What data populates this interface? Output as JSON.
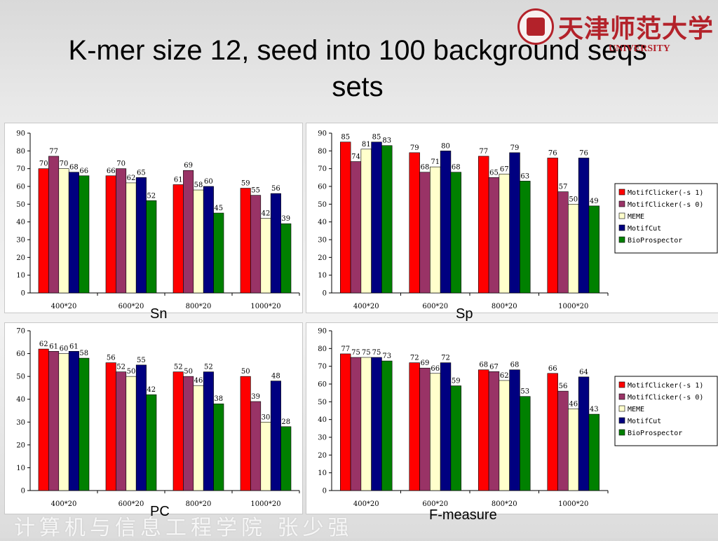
{
  "slide": {
    "title": "K-mer size 12, seed into 100 background seqs sets",
    "logo_text_cn": "天津师范大学",
    "logo_text_en": "UNIVERSITY",
    "footer_text": "计算机与信息工程学院   张少强"
  },
  "colors": {
    "MotifClicker(-s 1)": "#ff0000",
    "MotifClicker(-s 0)": "#993366",
    "MEME": "#ffffcc",
    "MotifCut": "#000080",
    "BioProspector": "#008000"
  },
  "chart_data": [
    {
      "type": "bar",
      "caption": "Sn",
      "categories": [
        "400*20",
        "600*20",
        "800*20",
        "1000*20"
      ],
      "ylim": [
        0,
        90
      ],
      "yticks": [
        0,
        10,
        20,
        30,
        40,
        50,
        60,
        70,
        80,
        90
      ],
      "legend": false,
      "series": [
        {
          "name": "MotifClicker(-s 1)",
          "values": [
            70,
            66,
            61,
            59
          ]
        },
        {
          "name": "MotifClicker(-s 0)",
          "values": [
            77,
            70,
            69,
            55
          ]
        },
        {
          "name": "MEME",
          "values": [
            70,
            62,
            58,
            42
          ]
        },
        {
          "name": "MotifCut",
          "values": [
            68,
            65,
            60,
            56
          ]
        },
        {
          "name": "BioProspector",
          "values": [
            66,
            52,
            45,
            39
          ]
        }
      ]
    },
    {
      "type": "bar",
      "caption": "Sp",
      "categories": [
        "400*20",
        "600*20",
        "800*20",
        "1000*20"
      ],
      "ylim": [
        0,
        90
      ],
      "yticks": [
        0,
        10,
        20,
        30,
        40,
        50,
        60,
        70,
        80,
        90
      ],
      "legend": true,
      "series": [
        {
          "name": "MotifClicker(-s 1)",
          "values": [
            85,
            79,
            77,
            76
          ]
        },
        {
          "name": "MotifClicker(-s 0)",
          "values": [
            74,
            68,
            65,
            57
          ]
        },
        {
          "name": "MEME",
          "values": [
            81,
            71,
            67,
            50
          ]
        },
        {
          "name": "MotifCut",
          "values": [
            85,
            80,
            79,
            76
          ]
        },
        {
          "name": "BioProspector",
          "values": [
            83,
            68,
            63,
            49
          ]
        }
      ]
    },
    {
      "type": "bar",
      "caption": "PC",
      "categories": [
        "400*20",
        "600*20",
        "800*20",
        "1000*20"
      ],
      "ylim": [
        0,
        70
      ],
      "yticks": [
        0,
        10,
        20,
        30,
        40,
        50,
        60,
        70
      ],
      "legend": false,
      "series": [
        {
          "name": "MotifClicker(-s 1)",
          "values": [
            62,
            56,
            52,
            50
          ]
        },
        {
          "name": "MotifClicker(-s 0)",
          "values": [
            61,
            52,
            50,
            39
          ]
        },
        {
          "name": "MEME",
          "values": [
            60,
            50,
            46,
            30
          ]
        },
        {
          "name": "MotifCut",
          "values": [
            61,
            55,
            52,
            48
          ]
        },
        {
          "name": "BioProspector",
          "values": [
            58,
            42,
            38,
            28
          ]
        }
      ]
    },
    {
      "type": "bar",
      "caption": "F-measure",
      "categories": [
        "400*20",
        "600*20",
        "800*20",
        "1000*20"
      ],
      "ylim": [
        0,
        90
      ],
      "yticks": [
        0,
        10,
        20,
        30,
        40,
        50,
        60,
        70,
        80,
        90
      ],
      "legend": true,
      "series": [
        {
          "name": "MotifClicker(-s 1)",
          "values": [
            77,
            72,
            68,
            66
          ]
        },
        {
          "name": "MotifClicker(-s 0)",
          "values": [
            75,
            69,
            67,
            56
          ]
        },
        {
          "name": "MEME",
          "values": [
            75,
            66,
            62,
            46
          ]
        },
        {
          "name": "MotifCut",
          "values": [
            75,
            72,
            68,
            64
          ]
        },
        {
          "name": "BioProspector",
          "values": [
            73,
            59,
            53,
            43
          ]
        }
      ]
    }
  ]
}
